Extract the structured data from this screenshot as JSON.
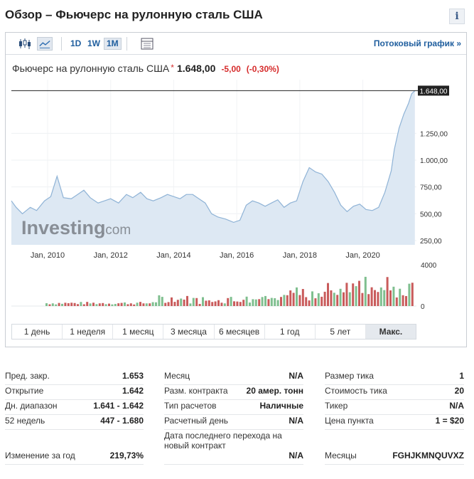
{
  "page": {
    "title": "Обзор – Фьючерс на рулонную сталь США",
    "info_icon": "i"
  },
  "toolbar": {
    "periods": [
      "1D",
      "1W",
      "1M"
    ],
    "active_period": "1M",
    "stream_link": "Потоковый график »",
    "icons": [
      "candlestick-icon",
      "line-chart-icon",
      "table-icon"
    ]
  },
  "quote": {
    "name": "Фьючерс на рулонную сталь США",
    "last": "1.648,00",
    "change": "-5,00",
    "change_pct": "(-0,30%)",
    "star": "*"
  },
  "watermark": {
    "brand": "Investing",
    "suffix": ".com"
  },
  "colors": {
    "area_fill": "#dde8f3",
    "area_line": "#8fb3d6",
    "volume_up": "#7fbf8f",
    "volume_down": "#c95b5b",
    "negative": "#d62c2c",
    "link": "#1f5e9e"
  },
  "chart_data": {
    "type": "area",
    "x_tick_labels": [
      "Jan, 2010",
      "Jan, 2012",
      "Jan, 2014",
      "Jan, 2016",
      "Jan, 2018",
      "Jan, 2020"
    ],
    "x_tick_years": [
      2010,
      2012,
      2014,
      2016,
      2018,
      2020
    ],
    "y_tick_labels": [
      "1.648,00",
      "1.250,00",
      "1.000,00",
      "750,00",
      "500,00",
      "250,00"
    ],
    "y_ticks": [
      1648,
      1250,
      1000,
      750,
      500,
      250
    ],
    "last_price_label": "1.648,00",
    "last_price": 1648,
    "ylim": [
      210,
      1750
    ],
    "xlim": [
      2008.85,
      2021.7
    ],
    "series": [
      {
        "x": [
          2008.85,
          2009.0,
          2009.2,
          2009.45,
          2009.65,
          2009.9,
          2010.1,
          2010.3,
          2010.5,
          2010.75,
          2010.95,
          2011.15,
          2011.35,
          2011.6,
          2011.8,
          2012.0,
          2012.25,
          2012.5,
          2012.7,
          2012.95,
          2013.15,
          2013.35,
          2013.6,
          2013.8,
          2014.0,
          2014.2,
          2014.4,
          2014.6,
          2014.8,
          2015.0,
          2015.2,
          2015.4,
          2015.65,
          2015.9,
          2016.1,
          2016.3,
          2016.5,
          2016.7,
          2016.9,
          2017.1,
          2017.3,
          2017.5,
          2017.7,
          2017.9,
          2018.1,
          2018.3,
          2018.5,
          2018.7,
          2018.9,
          2019.1,
          2019.3,
          2019.5,
          2019.7,
          2019.9,
          2020.1,
          2020.3,
          2020.5,
          2020.7,
          2020.9,
          2021.0,
          2021.15,
          2021.3,
          2021.45,
          2021.55,
          2021.65
        ],
        "values": [
          620,
          560,
          500,
          560,
          530,
          620,
          660,
          850,
          650,
          640,
          680,
          720,
          650,
          600,
          620,
          640,
          600,
          680,
          650,
          700,
          640,
          620,
          650,
          680,
          660,
          640,
          680,
          680,
          640,
          600,
          500,
          470,
          450,
          420,
          440,
          580,
          620,
          600,
          570,
          600,
          630,
          560,
          600,
          620,
          800,
          930,
          890,
          870,
          800,
          700,
          580,
          520,
          570,
          590,
          540,
          530,
          560,
          700,
          900,
          1100,
          1300,
          1430,
          1530,
          1620,
          1648
        ]
      }
    ],
    "volume": {
      "ylim": [
        0,
        4000
      ],
      "y_tick_labels": [
        "4000",
        "0"
      ],
      "y_ticks": [
        4000,
        0
      ]
    }
  },
  "range_tabs": [
    "1 день",
    "1 неделя",
    "1 месяц",
    "3 месяца",
    "6 месяцев",
    "1 год",
    "5 лет",
    "Макс."
  ],
  "active_range": "Макс.",
  "stats": {
    "col1": [
      {
        "label": "Пред. закр.",
        "value": "1.653"
      },
      {
        "label": "Открытие",
        "value": "1.642"
      },
      {
        "label": "Дн. диапазон",
        "value": "1.641 - 1.642"
      },
      {
        "label": "52 недель",
        "value": "447 - 1.680"
      },
      {
        "label": "Изменение за год",
        "value": "219,73%"
      }
    ],
    "col2": [
      {
        "label": "Месяц",
        "value": "N/A"
      },
      {
        "label": "Разм. контракта",
        "value": "20 амер. тонн"
      },
      {
        "label": "Тип расчетов",
        "value": "Наличные"
      },
      {
        "label": "Расчетный день",
        "value": "N/A"
      },
      {
        "label": "Дата последнего перехода на новый контракт",
        "value": "N/A"
      }
    ],
    "col3": [
      {
        "label": "Размер тика",
        "value": "1"
      },
      {
        "label": "Стоимость тика",
        "value": "20"
      },
      {
        "label": "Тикер",
        "value": "N/A"
      },
      {
        "label": "Цена пункта",
        "value": "1 = $20"
      },
      {
        "label": "Месяцы",
        "value": "FGHJKMNQUVXZ"
      }
    ]
  }
}
